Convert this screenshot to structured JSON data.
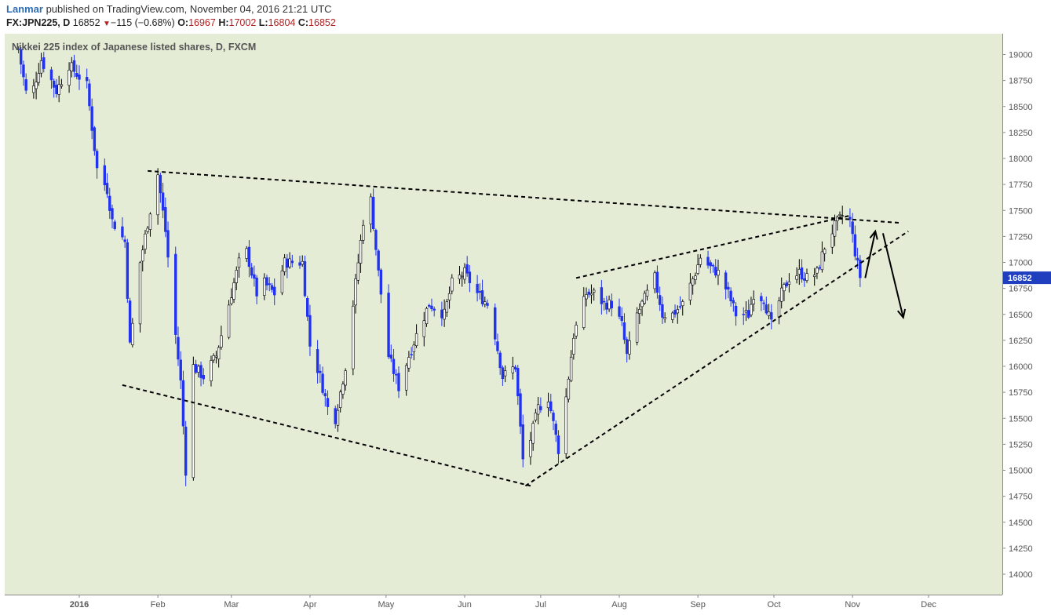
{
  "header": {
    "author": "Lanmar",
    "published_text": " published on TradingView.com, November 04, 2016 21:21 UTC",
    "symbol": "FX:JPN225, D",
    "last": "16852",
    "change_arrow": "▼",
    "change": "−115 (−0.68%)",
    "o_label": "O:",
    "o_value": "16967",
    "h_label": "H:",
    "h_value": "17002",
    "l_label": "L:",
    "l_value": "16804",
    "c_label": "C:",
    "c_value": "16852"
  },
  "colors": {
    "plot_background": "#e4ecd6",
    "up_candle": "#000000",
    "down_candle": "#2233ee",
    "trendline": "#000000",
    "price_tag": "#1f3fbf",
    "axis_text": "#555555",
    "header_link": "#2e6db4",
    "header_value": "#b22222"
  },
  "chart_data": {
    "type": "candlestick",
    "title": "Nikkei 225 index of Japanese listed shares, D, FXCM",
    "y_ticks": [
      14000,
      14250,
      14500,
      14750,
      15000,
      15250,
      15500,
      15750,
      16000,
      16250,
      16500,
      16750,
      17000,
      17250,
      17500,
      17750,
      18000,
      18250,
      18500,
      18750,
      19000
    ],
    "ylim": [
      13800,
      19200
    ],
    "x_labels": [
      "2016",
      "Feb",
      "Mar",
      "Apr",
      "May",
      "Jun",
      "Jul",
      "Aug",
      "Sep",
      "Oct",
      "Nov",
      "Dec"
    ],
    "x_label_dates": [
      "2016-01-01",
      "2016-02-01",
      "2016-03-01",
      "2016-04-01",
      "2016-05-01",
      "2016-06-01",
      "2016-07-01",
      "2016-08-01",
      "2016-09-01",
      "2016-10-01",
      "2016-11-01",
      "2016-12-01"
    ],
    "last_price": 16852,
    "last_price_label": "16852",
    "price_anchors": [
      [
        "2015-12-08",
        19050
      ],
      [
        "2015-12-12",
        18500
      ],
      [
        "2015-12-17",
        18950
      ],
      [
        "2015-12-23",
        18650
      ],
      [
        "2015-12-28",
        18900
      ],
      [
        "2016-01-04",
        18700
      ],
      [
        "2016-01-08",
        17900
      ],
      [
        "2016-01-12",
        17700
      ],
      [
        "2016-01-14",
        17400
      ],
      [
        "2016-01-19",
        17200
      ],
      [
        "2016-01-21",
        16200
      ],
      [
        "2016-01-25",
        17000
      ],
      [
        "2016-01-29",
        17500
      ],
      [
        "2016-02-01",
        17850
      ],
      [
        "2016-02-04",
        17300
      ],
      [
        "2016-02-08",
        16300
      ],
      [
        "2016-02-10",
        15850
      ],
      [
        "2016-02-12",
        15000
      ],
      [
        "2016-02-15",
        16000
      ],
      [
        "2016-02-19",
        15900
      ],
      [
        "2016-02-24",
        16100
      ],
      [
        "2016-03-01",
        16700
      ],
      [
        "2016-03-04",
        17000
      ],
      [
        "2016-03-07",
        17100
      ],
      [
        "2016-03-11",
        16700
      ],
      [
        "2016-03-14",
        16800
      ],
      [
        "2016-03-18",
        16700
      ],
      [
        "2016-03-22",
        17000
      ],
      [
        "2016-03-25",
        17000
      ],
      [
        "2016-03-29",
        17000
      ],
      [
        "2016-04-01",
        16200
      ],
      [
        "2016-04-05",
        15900
      ],
      [
        "2016-04-08",
        15600
      ],
      [
        "2016-04-11",
        15500
      ],
      [
        "2016-04-15",
        16000
      ],
      [
        "2016-04-19",
        16800
      ],
      [
        "2016-04-22",
        17400
      ],
      [
        "2016-04-25",
        17600
      ],
      [
        "2016-04-28",
        16900
      ],
      [
        "2016-05-02",
        16100
      ],
      [
        "2016-05-06",
        15800
      ],
      [
        "2016-05-10",
        16100
      ],
      [
        "2016-05-13",
        16300
      ],
      [
        "2016-05-18",
        16600
      ],
      [
        "2016-05-24",
        16500
      ],
      [
        "2016-05-27",
        16800
      ],
      [
        "2016-06-01",
        16900
      ],
      [
        "2016-06-06",
        16700
      ],
      [
        "2016-06-10",
        16600
      ],
      [
        "2016-06-13",
        16300
      ],
      [
        "2016-06-16",
        15900
      ],
      [
        "2016-06-21",
        16000
      ],
      [
        "2016-06-24",
        15100
      ],
      [
        "2016-06-27",
        15300
      ],
      [
        "2016-06-30",
        15600
      ],
      [
        "2016-07-04",
        15700
      ],
      [
        "2016-07-08",
        15200
      ],
      [
        "2016-07-11",
        15700
      ],
      [
        "2016-07-14",
        16300
      ],
      [
        "2016-07-19",
        16700
      ],
      [
        "2016-07-22",
        16700
      ],
      [
        "2016-07-26",
        16600
      ],
      [
        "2016-07-29",
        16600
      ],
      [
        "2016-08-02",
        16400
      ],
      [
        "2016-08-04",
        16100
      ],
      [
        "2016-08-08",
        16500
      ],
      [
        "2016-08-12",
        16700
      ],
      [
        "2016-08-15",
        16850
      ],
      [
        "2016-08-18",
        16500
      ],
      [
        "2016-08-22",
        16500
      ],
      [
        "2016-08-26",
        16600
      ],
      [
        "2016-08-31",
        16900
      ],
      [
        "2016-09-02",
        17050
      ],
      [
        "2016-09-06",
        16950
      ],
      [
        "2016-09-09",
        16900
      ],
      [
        "2016-09-13",
        16700
      ],
      [
        "2016-09-16",
        16500
      ],
      [
        "2016-09-21",
        16500
      ],
      [
        "2016-09-23",
        16700
      ],
      [
        "2016-09-27",
        16650
      ],
      [
        "2016-09-30",
        16400
      ],
      [
        "2016-10-04",
        16700
      ],
      [
        "2016-10-07",
        16850
      ],
      [
        "2016-10-11",
        16900
      ],
      [
        "2016-10-14",
        16850
      ],
      [
        "2016-10-18",
        16900
      ],
      [
        "2016-10-21",
        17150
      ],
      [
        "2016-10-25",
        17350
      ],
      [
        "2016-10-28",
        17450
      ],
      [
        "2016-10-31",
        17400
      ],
      [
        "2016-11-02",
        17100
      ],
      [
        "2016-11-04",
        16852
      ]
    ],
    "trendlines": [
      {
        "from": [
          "2016-01-28",
          17880
        ],
        "to": [
          "2016-11-20",
          17380
        ]
      },
      {
        "from": [
          "2016-01-18",
          15820
        ],
        "to": [
          "2016-06-27",
          14850
        ]
      },
      {
        "from": [
          "2016-06-25",
          14850
        ],
        "to": [
          "2016-11-23",
          17300
        ]
      },
      {
        "from": [
          "2016-07-15",
          16850
        ],
        "to": [
          "2016-10-31",
          17450
        ]
      }
    ],
    "arrows": [
      {
        "from": [
          "2016-11-06",
          16850
        ],
        "to": [
          "2016-11-10",
          17300
        ]
      },
      {
        "from": [
          "2016-11-13",
          17280
        ],
        "to": [
          "2016-11-21",
          16470
        ]
      }
    ]
  }
}
